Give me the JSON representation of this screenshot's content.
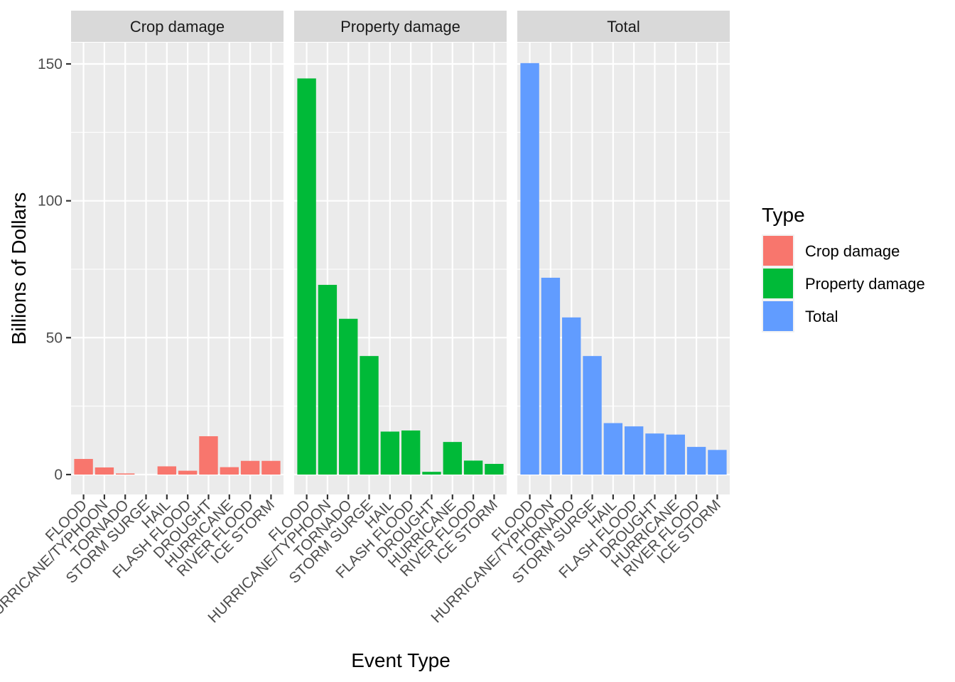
{
  "chart_data": {
    "type": "bar",
    "facets": [
      "Crop damage",
      "Property damage",
      "Total"
    ],
    "categories": [
      "FLOOD",
      "HURRICANE/TYPHOON",
      "TORNADO",
      "STORM SURGE",
      "HAIL",
      "FLASH FLOOD",
      "DROUGHT",
      "HURRICANE",
      "RIVER FLOOD",
      "ICE STORM"
    ],
    "series": [
      {
        "name": "Crop damage",
        "color": "#F8766D",
        "values": [
          5.7,
          2.6,
          0.4,
          0.0,
          3.0,
          1.4,
          14.0,
          2.7,
          5.0,
          5.0
        ]
      },
      {
        "name": "Property damage",
        "color": "#00BA38",
        "values": [
          144.7,
          69.3,
          56.9,
          43.3,
          15.7,
          16.1,
          1.0,
          11.9,
          5.1,
          3.9
        ]
      },
      {
        "name": "Total",
        "color": "#619CFF",
        "values": [
          150.3,
          71.9,
          57.4,
          43.3,
          18.8,
          17.6,
          15.0,
          14.6,
          10.1,
          9.0
        ]
      }
    ],
    "xlabel": "Event Type",
    "ylabel": "Billions of Dollars",
    "ylim": [
      0,
      157.5
    ],
    "yticks": [
      0,
      50,
      100,
      150
    ],
    "grid": true,
    "legend": {
      "title": "Type",
      "position": "right"
    }
  }
}
